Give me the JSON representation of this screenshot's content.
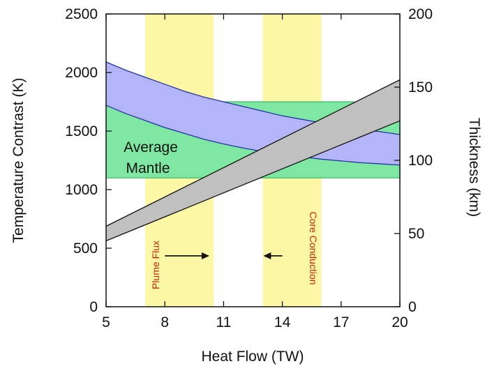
{
  "chart_data": {
    "type": "area",
    "xlabel": "Heat Flow (TW)",
    "ylabel": "Temperature Contrast (K)",
    "y2label": "Thickness (km)",
    "xlim": [
      5,
      20
    ],
    "ylim": [
      0,
      2500
    ],
    "y2lim": [
      0,
      200
    ],
    "xticks": [
      5,
      8,
      11,
      14,
      17,
      20
    ],
    "yticks": [
      0,
      500,
      1000,
      1500,
      2000,
      2500
    ],
    "y2ticks": [
      0,
      50,
      100,
      150,
      200
    ],
    "bands": [
      {
        "label": "Plume Flux",
        "x": [
          7,
          10.5
        ],
        "color": "#fdf8a6",
        "arrow": [
          8,
          10.2
        ]
      },
      {
        "label": "Core Conduction",
        "x": [
          13,
          16
        ],
        "color": "#fdf8a6",
        "arrow": [
          14,
          13.1
        ]
      }
    ],
    "average_mantle": {
      "label_line1": "Average",
      "label_line2": "Mantle",
      "x": [
        7,
        20
      ],
      "y": [
        1100,
        1750
      ],
      "color": "#7ee8a3"
    },
    "series": [
      {
        "axis": "left",
        "color": "#b4b4f8",
        "stroke": "#2233aa",
        "x": [
          5,
          6,
          7,
          8,
          9,
          10,
          11,
          12,
          13,
          14,
          15,
          16,
          17,
          18,
          19,
          20
        ],
        "upper": [
          2090,
          2020,
          1960,
          1900,
          1840,
          1790,
          1750,
          1710,
          1670,
          1630,
          1600,
          1570,
          1540,
          1515,
          1495,
          1470
        ],
        "lower": [
          1720,
          1650,
          1590,
          1530,
          1480,
          1430,
          1390,
          1355,
          1325,
          1300,
          1280,
          1260,
          1245,
          1230,
          1220,
          1210
        ]
      },
      {
        "axis": "right",
        "color": "#c0c0c0",
        "stroke": "#111111",
        "x": [
          5,
          20
        ],
        "upper": [
          55,
          155
        ],
        "lower": [
          45,
          127
        ]
      }
    ]
  }
}
